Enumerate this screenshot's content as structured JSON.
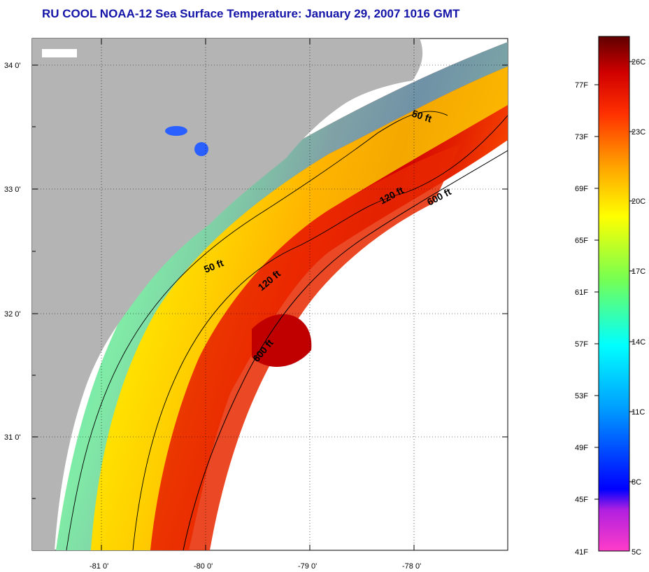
{
  "title": "RU COOL  NOAA-12  Sea Surface Temperature:  January 29, 2007 1016 GMT",
  "map": {
    "lat_labels": [
      "34 0'",
      "33 0'",
      "32 0'",
      "31 0'"
    ],
    "lon_labels": [
      "-81 0'",
      "-80 0'",
      "-79 0'",
      "-78 0'"
    ],
    "isobaths": [
      {
        "label": "50 ft",
        "instance": "north"
      },
      {
        "label": "120 ft",
        "instance": "north"
      },
      {
        "label": "600 ft",
        "instance": "north"
      },
      {
        "label": "50 ft",
        "instance": "south"
      },
      {
        "label": "120 ft",
        "instance": "south"
      },
      {
        "label": "600 ft",
        "instance": "south"
      }
    ],
    "colors": {
      "land": "#b4b4b4",
      "nodata": "#ffffff",
      "contour": "#000000",
      "grid": "#000000"
    }
  },
  "colorbar": {
    "fahrenheit_labels": [
      "77F",
      "73F",
      "69F",
      "65F",
      "61F",
      "57F",
      "53F",
      "49F",
      "45F",
      "41F"
    ],
    "celsius_labels": [
      "26C",
      "23C",
      "20C",
      "17C",
      "14C",
      "11C",
      "8C",
      "5C"
    ],
    "color_stops": [
      "#ff3cc8",
      "#b020e0",
      "#0000ff",
      "#00a0ff",
      "#00ffff",
      "#78ff50",
      "#ffff00",
      "#ffa000",
      "#ff3000",
      "#d00000",
      "#600000"
    ]
  }
}
